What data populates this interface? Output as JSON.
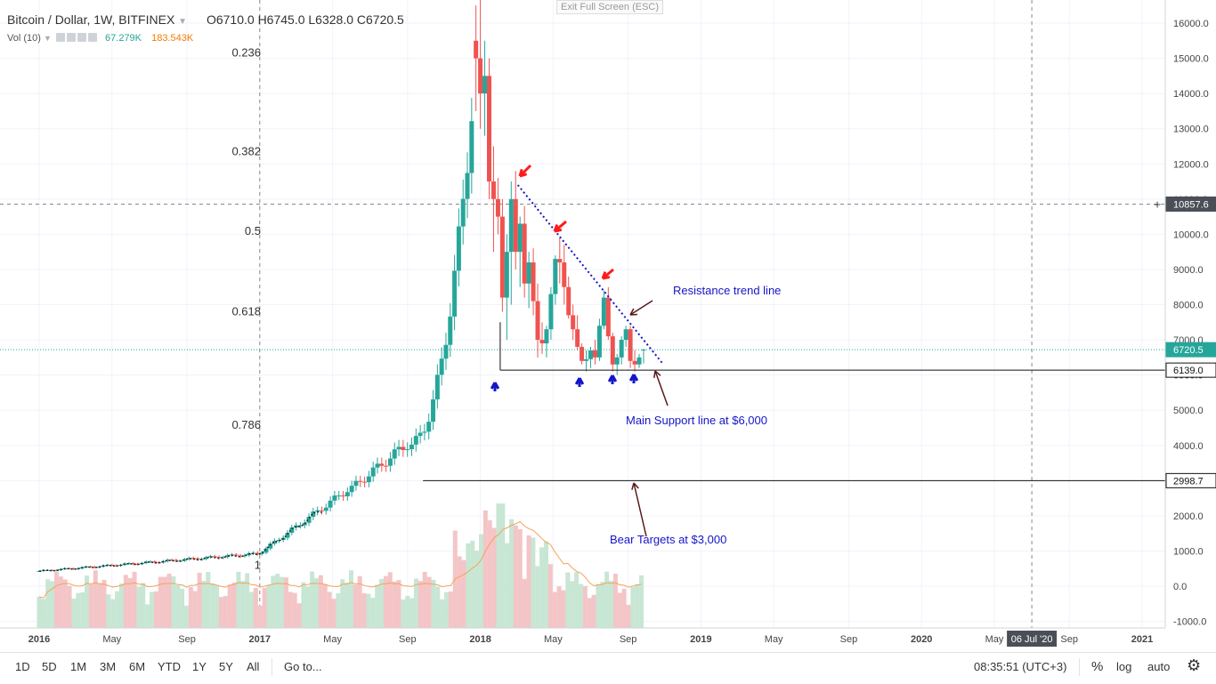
{
  "header": {
    "symbol": "Bitcoin / Dollar, 1W, BITFINEX",
    "ohlc": "O6710.0  H6745.0  L6328.0  C6720.5",
    "vol_label": "Vol (10)",
    "vol_value": "67.279K",
    "vol_ma": "183.543K"
  },
  "exit_fullscreen": "Exit Full Screen (ESC)",
  "price_tags": {
    "current": "6720.5",
    "support": "6139.0",
    "bear": "2998.7",
    "crosshair": "10857.6"
  },
  "date_badge": "06 Jul '20",
  "colors": {
    "up": "#26a69a",
    "down": "#ef5350",
    "annot": "#1515c8",
    "arrow_red": "#ff1a1a",
    "arrow_dark": "#5a1a1a"
  },
  "chart_data": {
    "type": "candlestick",
    "x_labels": [
      "2016",
      "May",
      "Sep",
      "2017",
      "May",
      "Sep",
      "2018",
      "May",
      "Sep",
      "2019",
      "May",
      "Sep",
      "2020",
      "May",
      "Sep",
      "2021"
    ],
    "y_ticks": [
      "16000.0",
      "15000.0",
      "14000.0",
      "13000.0",
      "12000.0",
      "11000.0",
      "10000.0",
      "9000.0",
      "8000.0",
      "7000.0",
      "6000.0",
      "5000.0",
      "4000.0",
      "3000.0",
      "2000.0",
      "1000.0",
      "0.0",
      "-1000.0"
    ],
    "fib_levels": [
      {
        "label": "0.236",
        "price": 15150
      },
      {
        "label": "0.382",
        "price": 12350
      },
      {
        "label": "0.5",
        "price": 10080
      },
      {
        "label": "0.618",
        "price": 7800
      },
      {
        "label": "0.786",
        "price": 4580
      },
      {
        "label": "1",
        "price": 600
      }
    ],
    "ohlc_weekly": [
      [
        2017.98,
        15500,
        16500,
        13500,
        15000
      ],
      [
        2018.0,
        15000,
        17000,
        13000,
        14000
      ],
      [
        2018.02,
        14000,
        15500,
        12800,
        14500
      ],
      [
        2018.04,
        14500,
        15000,
        11000,
        11500
      ],
      [
        2018.06,
        11500,
        12500,
        9500,
        11000
      ],
      [
        2018.08,
        11000,
        11600,
        10000,
        10500
      ],
      [
        2018.1,
        10500,
        11000,
        7800,
        8200
      ],
      [
        2018.12,
        8200,
        10000,
        7000,
        9500
      ],
      [
        2018.14,
        9500,
        11500,
        8000,
        11000
      ],
      [
        2018.16,
        11000,
        11800,
        9000,
        9500
      ],
      [
        2018.18,
        9500,
        10500,
        8500,
        10300
      ],
      [
        2018.2,
        10300,
        10800,
        8200,
        8600
      ],
      [
        2018.22,
        8600,
        9500,
        7900,
        9200
      ],
      [
        2018.24,
        9200,
        9600,
        7700,
        8100
      ],
      [
        2018.26,
        8100,
        8600,
        6500,
        7000
      ],
      [
        2018.28,
        7000,
        7500,
        6600,
        6900
      ],
      [
        2018.3,
        6900,
        7400,
        6500,
        7300
      ],
      [
        2018.32,
        7300,
        8500,
        7000,
        8300
      ],
      [
        2018.34,
        8300,
        9400,
        8000,
        9300
      ],
      [
        2018.36,
        9300,
        9900,
        8600,
        9200
      ],
      [
        2018.38,
        9200,
        9700,
        8000,
        8500
      ],
      [
        2018.4,
        8500,
        8800,
        7600,
        7700
      ],
      [
        2018.42,
        7700,
        8000,
        7000,
        7300
      ],
      [
        2018.44,
        7300,
        7700,
        6700,
        6800
      ],
      [
        2018.46,
        6800,
        6900,
        6300,
        6400
      ],
      [
        2018.48,
        6400,
        6700,
        6100,
        6450
      ],
      [
        2018.5,
        6450,
        6800,
        6200,
        6700
      ],
      [
        2018.52,
        6700,
        7000,
        6300,
        6500
      ],
      [
        2018.54,
        6500,
        7600,
        6400,
        7400
      ],
      [
        2018.56,
        7400,
        8400,
        7300,
        8200
      ],
      [
        2018.58,
        8200,
        8500,
        7000,
        7100
      ],
      [
        2018.6,
        7100,
        7200,
        6100,
        6300
      ],
      [
        2018.62,
        6300,
        6600,
        6000,
        6500
      ],
      [
        2018.64,
        6500,
        7100,
        6300,
        7000
      ],
      [
        2018.66,
        7000,
        7400,
        6800,
        7300
      ],
      [
        2018.68,
        7300,
        7400,
        6200,
        6400
      ],
      [
        2018.7,
        6400,
        6700,
        6100,
        6300
      ],
      [
        2018.72,
        6300,
        6600,
        6200,
        6500
      ],
      [
        2018.74,
        6710,
        6745,
        6328,
        6720.5
      ]
    ],
    "annotations": [
      "Resistance trend line",
      "Main Support line at $6,000",
      "Bear Targets at $3,000"
    ],
    "support_price": 6139.0,
    "bear_target_price": 2998.7,
    "current_price": 6720.5
  }
}
